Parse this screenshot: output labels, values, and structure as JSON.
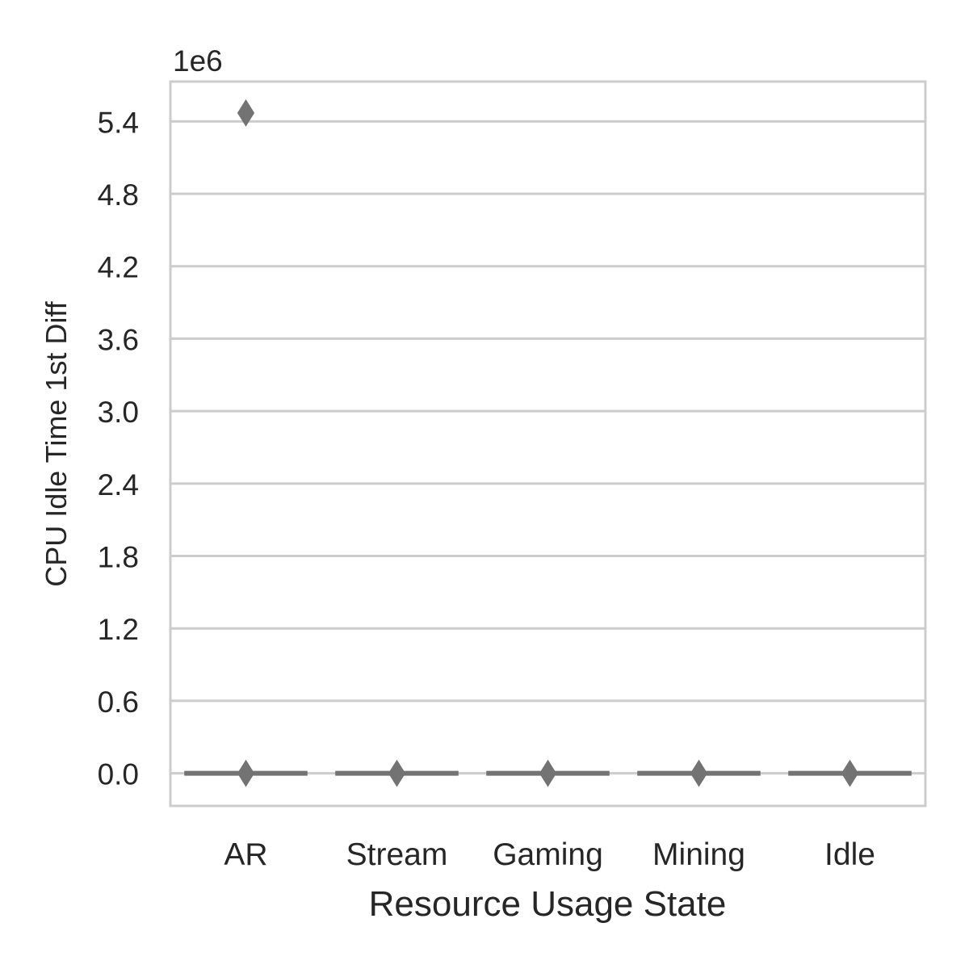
{
  "chart_data": {
    "type": "box",
    "title": "",
    "xlabel": "Resource Usage State",
    "ylabel": "CPU Idle Time 1st Diff",
    "offset_label": "1e6",
    "categories": [
      "AR",
      "Stream",
      "Gaming",
      "Mining",
      "Idle"
    ],
    "ylim": [
      -0.27,
      5.73
    ],
    "yticks": [
      0.0,
      0.6,
      1.2,
      1.8,
      2.4,
      3.0,
      3.6,
      4.2,
      4.8,
      5.4
    ],
    "ytick_labels": [
      "0.0",
      "0.6",
      "1.2",
      "1.8",
      "2.4",
      "3.0",
      "3.6",
      "4.2",
      "4.8",
      "5.4"
    ],
    "grid": true,
    "boxes": [
      {
        "category": "AR",
        "q1": 0.0,
        "median": 0.0,
        "q3": 0.0,
        "whisker_low": 0.0,
        "whisker_high": 0.0,
        "outliers": [
          5.47,
          0.0
        ]
      },
      {
        "category": "Stream",
        "q1": 0.0,
        "median": 0.0,
        "q3": 0.0,
        "whisker_low": 0.0,
        "whisker_high": 0.0,
        "outliers": [
          0.0
        ]
      },
      {
        "category": "Gaming",
        "q1": 0.0,
        "median": 0.0,
        "q3": 0.0,
        "whisker_low": 0.0,
        "whisker_high": 0.0,
        "outliers": [
          0.0
        ]
      },
      {
        "category": "Mining",
        "q1": 0.0,
        "median": 0.0,
        "q3": 0.0,
        "whisker_low": 0.0,
        "whisker_high": 0.0,
        "outliers": [
          0.0
        ]
      },
      {
        "category": "Idle",
        "q1": 0.0,
        "median": 0.0,
        "q3": 0.0,
        "whisker_low": 0.0,
        "whisker_high": 0.0,
        "outliers": [
          0.0
        ]
      }
    ],
    "colors": {
      "box": "#737373",
      "grid": "#cccccc",
      "spine": "#cccccc",
      "text": "#262626"
    }
  }
}
